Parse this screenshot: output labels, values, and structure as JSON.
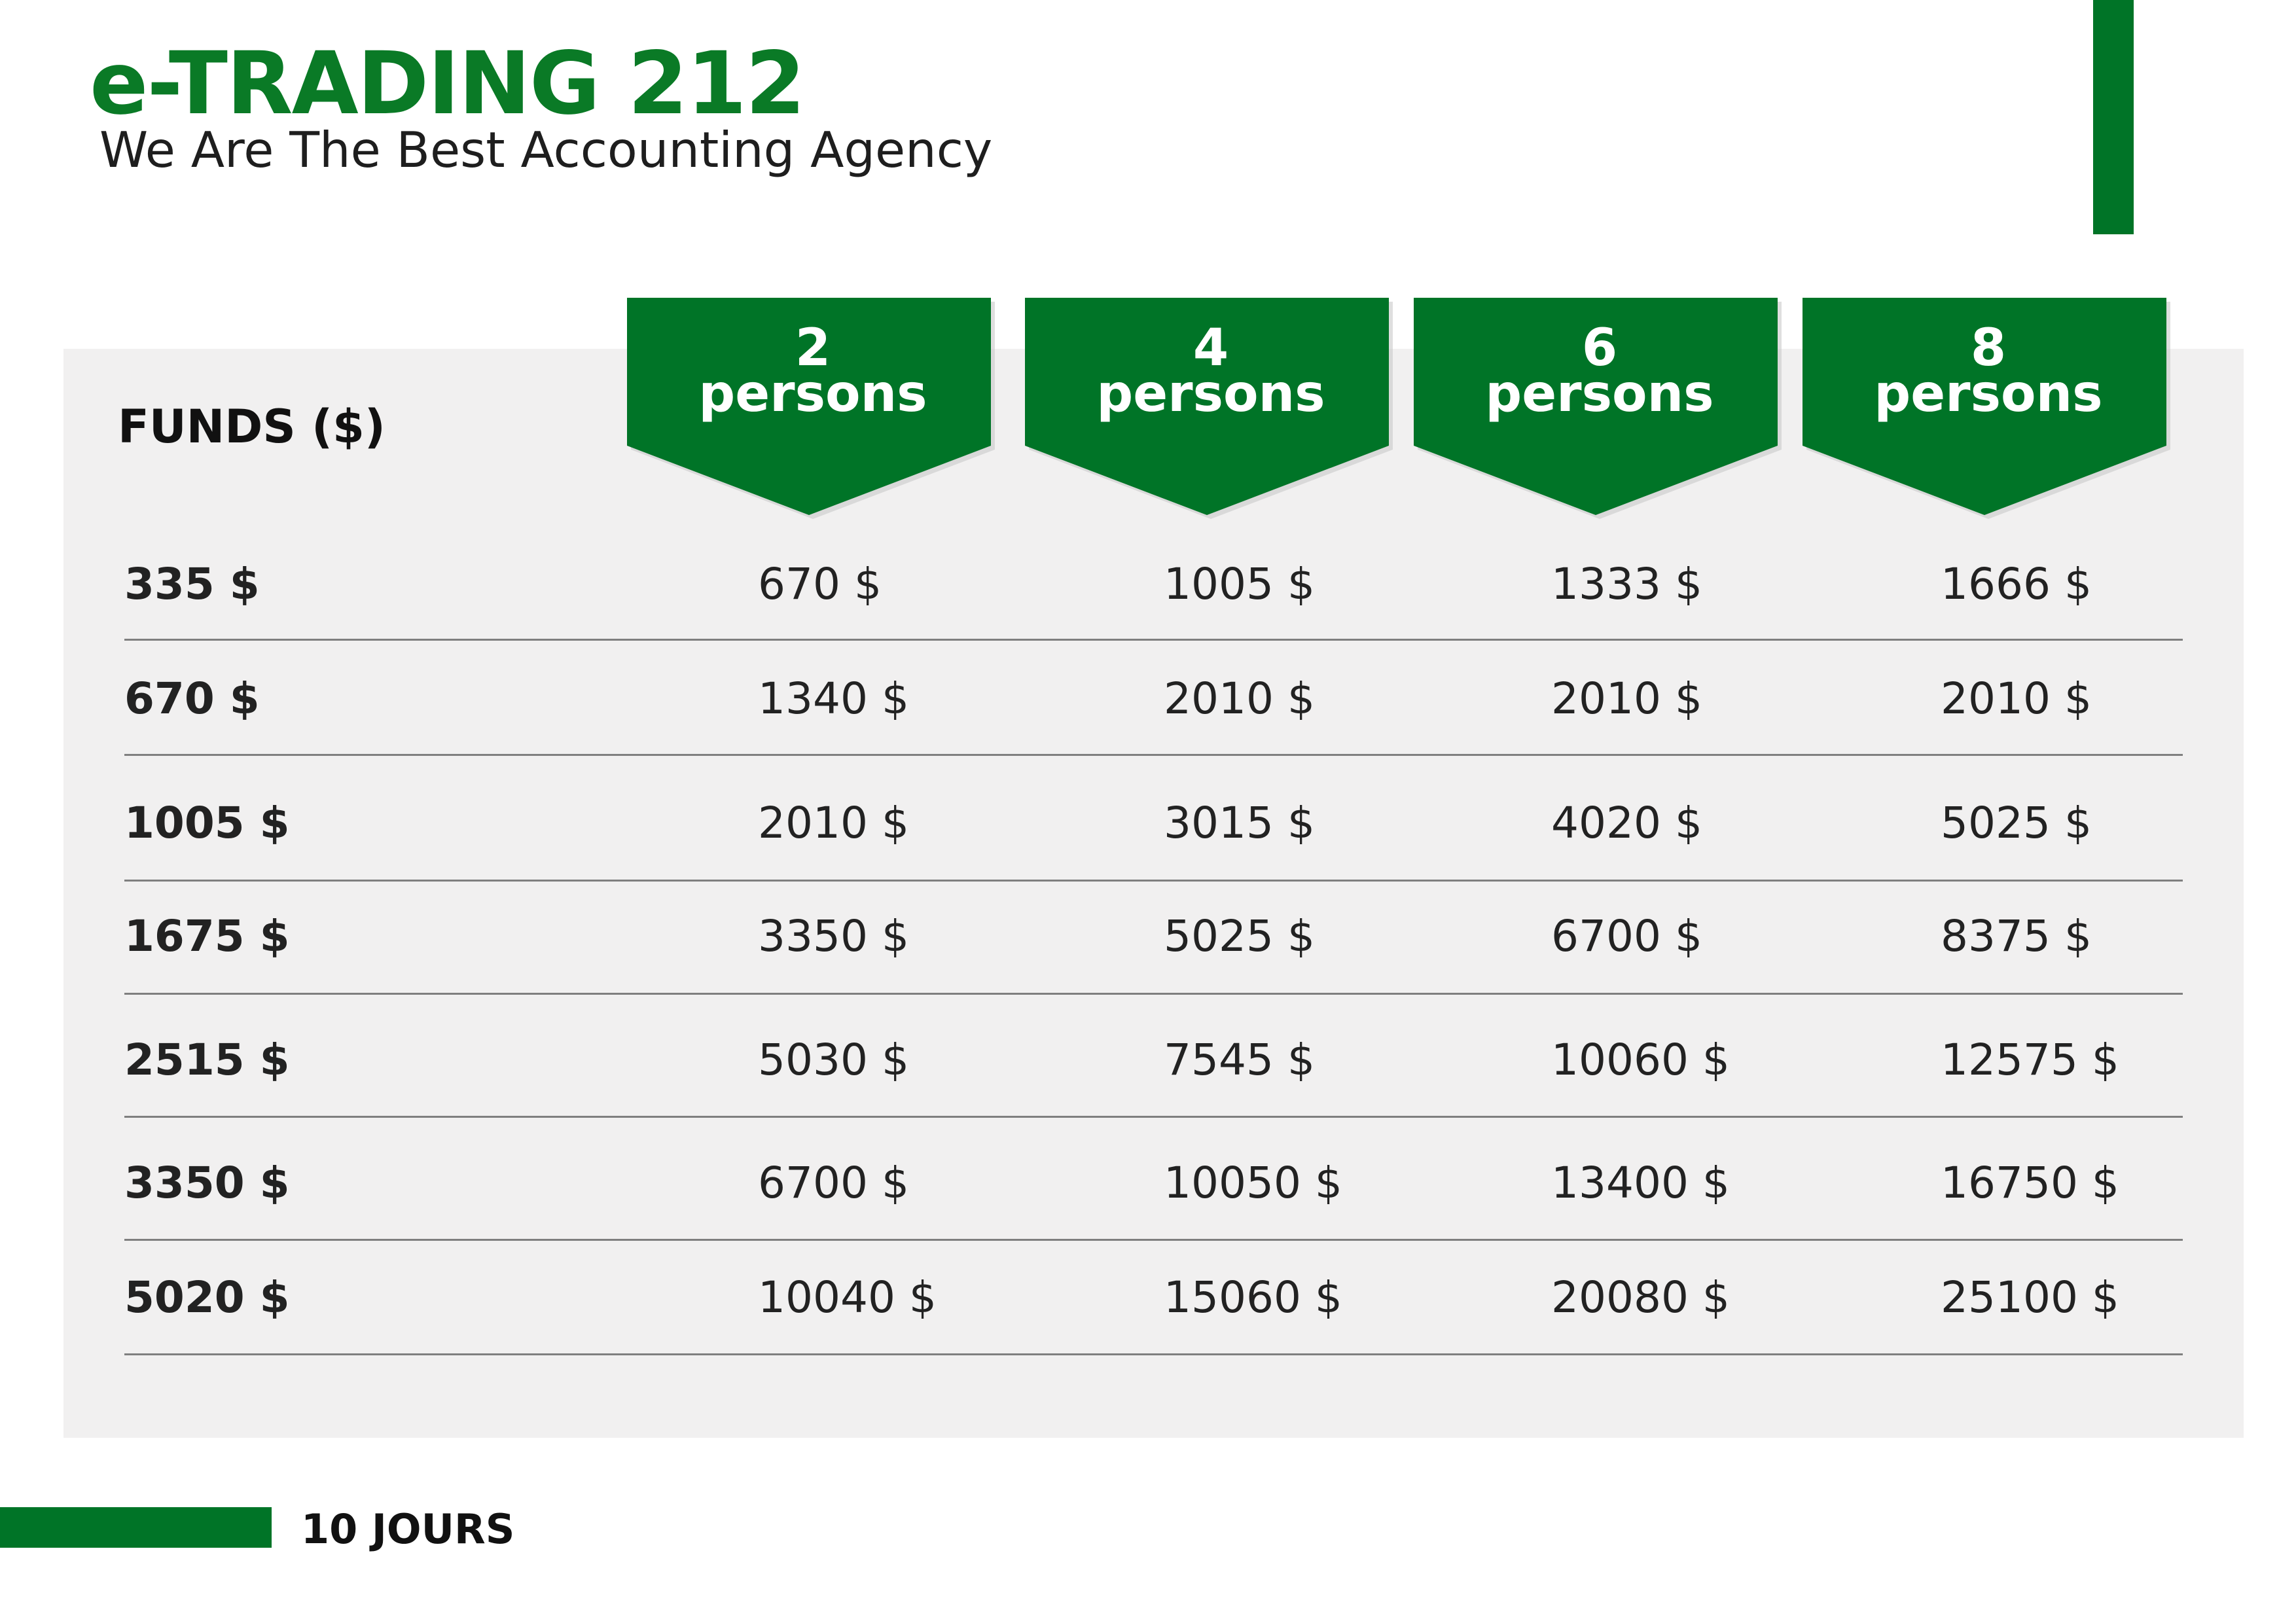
{
  "header": {
    "brand": "e-TRADING 212",
    "tagline": "We Are The Best Accounting Agency"
  },
  "table": {
    "funds_header": "FUNDS ($)",
    "columns": [
      {
        "number": "2",
        "unit": "persons"
      },
      {
        "number": "4",
        "unit": "persons"
      },
      {
        "number": "6",
        "unit": "persons"
      },
      {
        "number": "8",
        "unit": "persons"
      }
    ],
    "rows": [
      {
        "funds": "335 $",
        "values": [
          "670 $",
          "1005 $",
          "1333 $",
          "1666 $"
        ]
      },
      {
        "funds": "670 $",
        "values": [
          "1340 $",
          "2010 $",
          "2010 $",
          "2010 $"
        ]
      },
      {
        "funds": "1005 $",
        "values": [
          "2010 $",
          "3015 $",
          "4020 $",
          "5025 $"
        ]
      },
      {
        "funds": "1675 $",
        "values": [
          "3350 $",
          "5025 $",
          "6700 $",
          "8375 $"
        ]
      },
      {
        "funds": "2515 $",
        "values": [
          "5030 $",
          "7545 $",
          "10060 $",
          "12575 $"
        ]
      },
      {
        "funds": "3350 $",
        "values": [
          "6700 $",
          "10050 $",
          "13400 $",
          "16750 $"
        ]
      },
      {
        "funds": "5020 $",
        "values": [
          "10040 $",
          "15060 $",
          "20080 $",
          "25100 $"
        ]
      }
    ]
  },
  "footer": {
    "label": "10 JOURS"
  },
  "colors": {
    "brand_green": "#0a7a26",
    "accent_green": "#007427",
    "panel_background": "#f1f0f0"
  }
}
